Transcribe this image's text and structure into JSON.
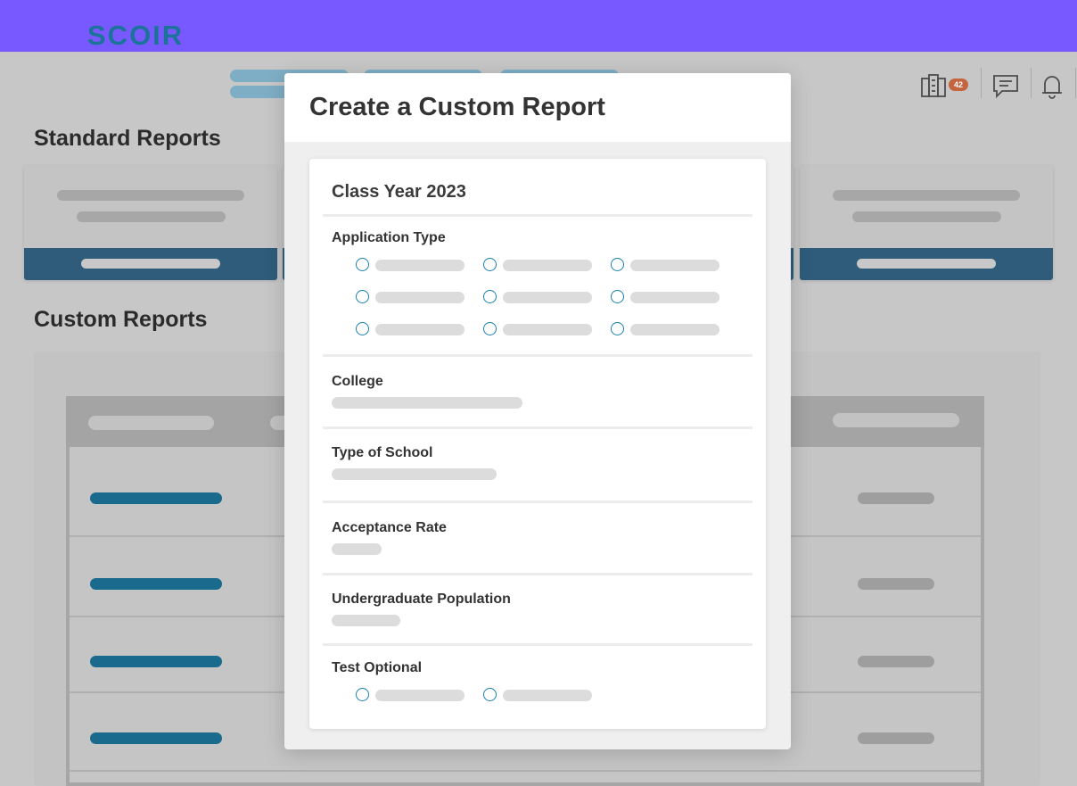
{
  "brand": {
    "logo_text": "SCOIR",
    "accent": "#1c7399",
    "topbar_color": "#7858ff"
  },
  "header": {
    "icons": [
      "college-building-icon",
      "chat-message-icon",
      "notification-bell-icon"
    ],
    "notification_count": "42"
  },
  "standard_reports": {
    "title": "Standard Reports"
  },
  "custom_reports": {
    "title": "Custom Reports"
  },
  "modal": {
    "title": "Create a Custom Report",
    "card_title": "Class Year 2023",
    "sections": {
      "application_type": "Application Type",
      "college": "College",
      "type_of_school": "Type of School",
      "acceptance_rate": "Acceptance Rate",
      "undergraduate_population": "Undergraduate Population",
      "test_optional": "Test Optional"
    }
  }
}
